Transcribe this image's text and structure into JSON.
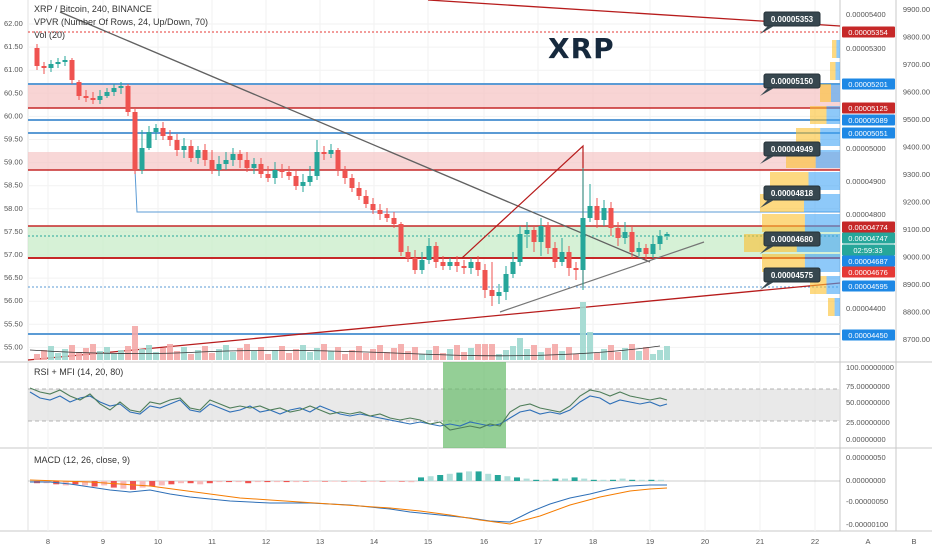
{
  "header": {
    "symbol": "XRP / Bitcoin, 240, BINANCE",
    "vpvr": "VPVR (Number Of Rows, 24, Up/Down, 70)",
    "vol": "Vol (20)"
  },
  "watermark": "XRP",
  "rsi_label": "RSI + MFI (14, 20, 80)",
  "macd_label": "MACD (12, 26, close, 9)",
  "colors": {
    "up": "#26a69a",
    "down": "#ef5350",
    "red_zone": "#f5c6c6",
    "green_zone": "#c8ecc8",
    "blue_line": "#5b9bd5",
    "trend_red": "#b71c1c",
    "trend_gray": "#616161",
    "callout": "#37474f"
  },
  "left_axis_ticks": [
    "62.00",
    "61.50",
    "61.00",
    "60.50",
    "60.00",
    "59.50",
    "59.00",
    "58.50",
    "58.00",
    "57.50",
    "57.00",
    "56.50",
    "56.00",
    "55.50",
    "55.00"
  ],
  "price_axis_ticks": [
    "0.00005400",
    "0.00005300",
    "0.00005000",
    "0.00004900",
    "0.00004800",
    "0.00004400"
  ],
  "right_axis_ticks": [
    "9900.00",
    "9800.00",
    "9700.00",
    "9600.00",
    "9500.00",
    "9400.00",
    "9300.00",
    "9200.00",
    "9100.00",
    "9000.00",
    "8900.00",
    "8800.00",
    "8700.00"
  ],
  "price_labels": [
    {
      "text": "0.00005354",
      "color": "#c62828"
    },
    {
      "text": "0.00005201",
      "color": "#1e88e5"
    },
    {
      "text": "0.00005125",
      "color": "#c62828"
    },
    {
      "text": "0.00005089",
      "color": "#1e88e5"
    },
    {
      "text": "0.00005051",
      "color": "#1e88e5"
    },
    {
      "text": "0.00004774",
      "color": "#c62828"
    },
    {
      "text": "0.00004747",
      "color": "#26a69a"
    },
    {
      "text": "02:59:33",
      "color": "#26a69a"
    },
    {
      "text": "0.00004687",
      "color": "#1e88e5"
    },
    {
      "text": "0.00004676",
      "color": "#e53935"
    },
    {
      "text": "0.00004595",
      "color": "#1e88e5"
    },
    {
      "text": "0.00004450",
      "color": "#1e88e5"
    }
  ],
  "callouts": [
    "0.00005353",
    "0.00005150",
    "0.00004949",
    "0.00004818",
    "0.00004680",
    "0.00004575"
  ],
  "rsi_axis_ticks": [
    "100.00000000",
    "75.00000000",
    "50.00000000",
    "25.00000000",
    "0.00000000"
  ],
  "macd_axis_ticks": [
    "0.00000050",
    "0.00000000",
    "-0.00000050",
    "-0.00000100"
  ],
  "time_ticks": [
    "8",
    "9",
    "10",
    "11",
    "12",
    "13",
    "14",
    "15",
    "16",
    "17",
    "18",
    "19",
    "20",
    "21",
    "22"
  ],
  "corner_labels": [
    "A",
    "B"
  ]
}
